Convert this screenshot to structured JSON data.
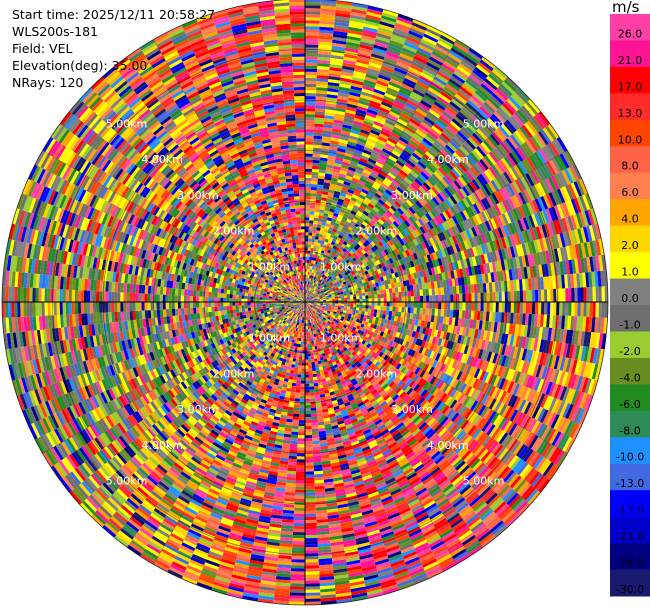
{
  "info": {
    "start_time": "Start time: 2025/12/11 20:58:27",
    "station": "WLS200s-181",
    "field": "Field: VEL",
    "elevation": "Elevation(deg): 35.00",
    "nrays": "NRays: 120"
  },
  "chart_data": {
    "type": "heatmap",
    "projection": "polar-ppi",
    "field": "VEL",
    "units": "m/s",
    "nrays": 120,
    "max_range_km": 6.0,
    "range_ring_labels": [
      "1.00km",
      "2.00km",
      "3.00km",
      "4.00km",
      "5.00km"
    ],
    "range_rings_km": [
      1,
      2,
      3,
      4,
      5
    ],
    "colorbar": {
      "title": "m/s",
      "tick_labels": [
        "26.0",
        "21.0",
        "17.0",
        "13.0",
        "10.0",
        "8.0",
        "6.0",
        "4.0",
        "2.0",
        "1.0",
        "0.0",
        "-1.0",
        "-2.0",
        "-4.0",
        "-6.0",
        "-8.0",
        "-10.0",
        "-13.0",
        "-17.0",
        "-21.0",
        "-26.0",
        "-30.0"
      ],
      "colors": [
        "#ff3fa8",
        "#ff1493",
        "#ff0000",
        "#ff2a2a",
        "#ff4500",
        "#ff6347",
        "#ff7f50",
        "#ffa500",
        "#ffd700",
        "#ffff00",
        "#808080",
        "#6e6e6e",
        "#9acd32",
        "#6b8e23",
        "#228b22",
        "#2e8b57",
        "#1e90ff",
        "#4169e1",
        "#0000ff",
        "#0000cd",
        "#000080",
        "#191970"
      ]
    }
  }
}
